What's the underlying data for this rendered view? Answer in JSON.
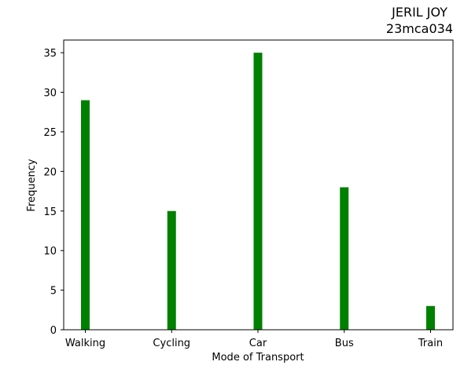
{
  "chart_data": {
    "type": "bar",
    "title_lines": [
      "JERIL JOY",
      "23mca034"
    ],
    "xlabel": "Mode of Transport",
    "ylabel": "Frequency",
    "categories": [
      "Walking",
      "Cycling",
      "Car",
      "Bus",
      "Train"
    ],
    "values": [
      29,
      15,
      35,
      18,
      3
    ],
    "ylim": [
      0,
      36.6
    ],
    "yticks": [
      0,
      5,
      10,
      15,
      20,
      25,
      30,
      35
    ],
    "bar_color": "#008000",
    "grid": false,
    "legend": "none"
  }
}
